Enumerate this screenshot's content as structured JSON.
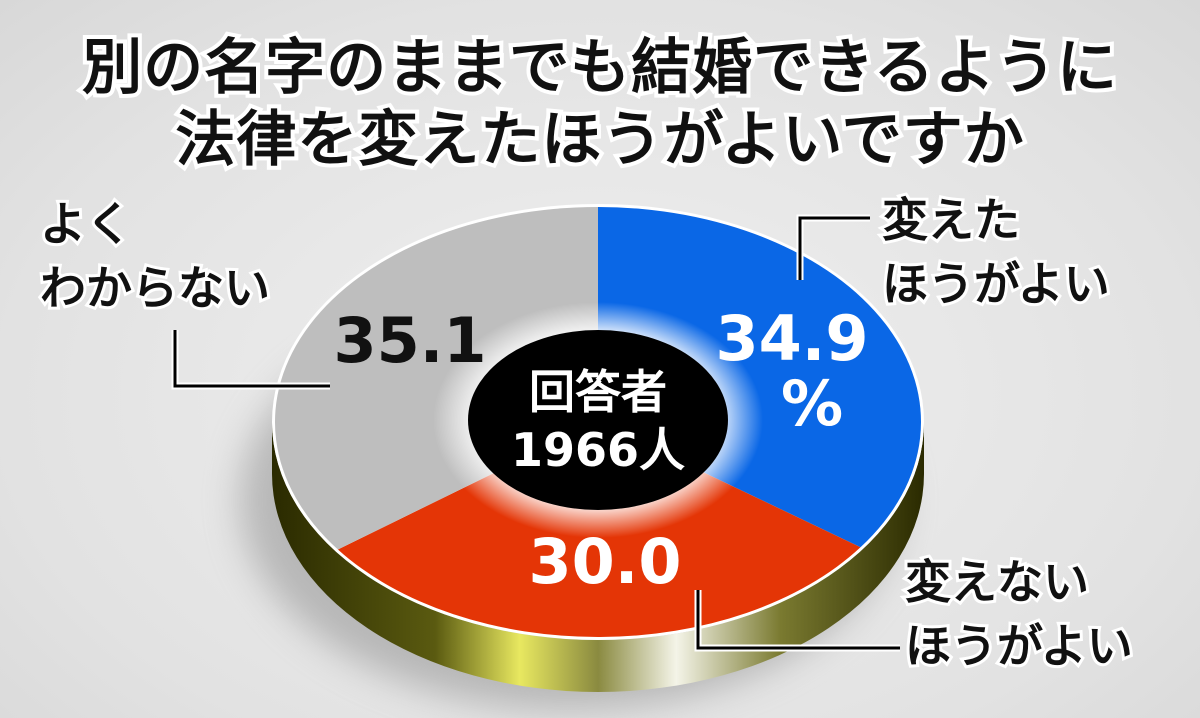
{
  "chart_data": {
    "type": "pie",
    "title": [
      "別の名字のままでも結婚できるように",
      "法律を変えたほうがよいですか"
    ],
    "center_label": [
      "回答者",
      "1966人"
    ],
    "unit": "%",
    "slices": [
      {
        "label": [
          "変えた",
          "ほうがよい"
        ],
        "value": 34.9,
        "value_label": "34.9",
        "color": "#0a67e6"
      },
      {
        "label": [
          "変えない",
          "ほうがよい"
        ],
        "value": 30.0,
        "value_label": "30.0",
        "color": "#e43506"
      },
      {
        "label": [
          "よく",
          "わからない"
        ],
        "value": 35.1,
        "value_label": "35.1",
        "color": "#bebebe"
      }
    ]
  }
}
